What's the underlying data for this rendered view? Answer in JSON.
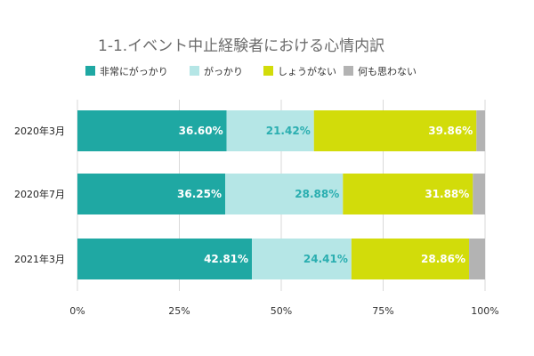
{
  "chart_data": {
    "type": "bar",
    "orientation": "horizontal",
    "stacked": true,
    "title": "1-1.イベント中止経験者における心情内訳",
    "categories": [
      "2020年3月",
      "2020年7月",
      "2021年3月"
    ],
    "series": [
      {
        "name": "非常にがっかり",
        "color": "#1fa8a3",
        "values": [
          36.6,
          36.25,
          42.81
        ],
        "labels": [
          "36.60%",
          "36.25%",
          "42.81%"
        ],
        "label_color": "#ffffff"
      },
      {
        "name": "がっかり",
        "color": "#b5e6e6",
        "values": [
          21.42,
          28.88,
          24.41
        ],
        "labels": [
          "21.42%",
          "28.88%",
          "24.41%"
        ],
        "label_color": "#2aaeb0"
      },
      {
        "name": "しょうがない",
        "color": "#d2dc0a",
        "values": [
          39.86,
          31.88,
          28.86
        ],
        "labels": [
          "39.86%",
          "31.88%",
          "28.86%"
        ],
        "label_color": "#ffffff"
      },
      {
        "name": "何も思わない",
        "color": "#b3b3b3",
        "values": [
          2.12,
          2.99,
          3.92
        ],
        "labels": [
          "",
          "",
          ""
        ],
        "label_color": "#ffffff"
      }
    ],
    "xlim": [
      0,
      100
    ],
    "xticks": [
      0,
      25,
      50,
      75,
      100
    ],
    "xtick_labels": [
      "0%",
      "25%",
      "50%",
      "75%",
      "100%"
    ],
    "grid": "vertical",
    "legend_position": "top"
  }
}
